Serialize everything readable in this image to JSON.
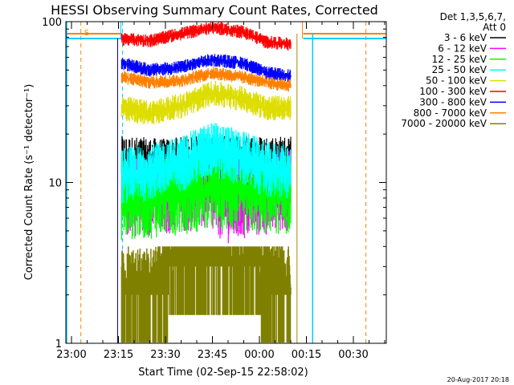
{
  "chart_data": {
    "type": "line",
    "title": "HESSI Observing Summary Count Rates, Corrected",
    "xlabel": "Start Time (02-Sep-15 22:58:02)",
    "ylabel": "Corrected Count Rate (s⁻¹ detector⁻¹)",
    "y_scale": "log",
    "ylim": [
      1,
      100
    ],
    "xlim_minutes": [
      -7,
      45
    ],
    "x_ticks": [
      {
        "label": "23:00",
        "m": 0
      },
      {
        "label": "23:15",
        "m": 15
      },
      {
        "label": "23:30",
        "m": 30
      },
      {
        "label": "23:45",
        "m": 45
      },
      {
        "label": "00:00",
        "m": 60
      },
      {
        "label": "00:15",
        "m": 75
      },
      {
        "label": "00:30",
        "m": 90
      }
    ],
    "y_ticks": [
      {
        "label": "1",
        "v": 1
      },
      {
        "label": "10",
        "v": 10
      },
      {
        "label": "100",
        "v": 100
      }
    ],
    "legend_header": [
      "Det 1,3,5,6,7,",
      "Att 0"
    ],
    "legend_position": "right",
    "footer_date": "20-Aug-2017 20:18",
    "marker_label": "S",
    "night_intervals": [
      [
        -12,
        16
      ],
      [
        74,
        999
      ]
    ],
    "saa_markers": [
      3,
      94
    ],
    "series": [
      {
        "name": "3 - 6 keV",
        "color": "#000000",
        "points": [
          [
            16,
            13
          ],
          [
            30,
            12.5
          ],
          [
            45,
            13.5
          ],
          [
            60,
            13
          ],
          [
            70,
            13
          ]
        ],
        "spread": 1.5
      },
      {
        "name": "6 - 12 keV",
        "color": "#ff00ff",
        "points": [
          [
            16,
            8.2
          ],
          [
            30,
            8.5
          ],
          [
            42,
            9
          ],
          [
            50,
            7.5
          ],
          [
            58,
            8
          ],
          [
            64,
            8.5
          ],
          [
            70,
            9
          ]
        ],
        "spread": 1.8
      },
      {
        "name": "12 - 25 keV",
        "color": "#00ff00",
        "points": [
          [
            16,
            7.8
          ],
          [
            25,
            8
          ],
          [
            35,
            8.5
          ],
          [
            45,
            9
          ],
          [
            55,
            8.5
          ],
          [
            70,
            8.5
          ]
        ],
        "spread": 1.8
      },
      {
        "name": "25 - 50 keV",
        "color": "#00ffff",
        "points": [
          [
            16,
            11
          ],
          [
            25,
            11.5
          ],
          [
            35,
            13
          ],
          [
            45,
            16
          ],
          [
            55,
            14
          ],
          [
            62,
            12
          ],
          [
            70,
            11.5
          ]
        ],
        "spread": 1.5
      },
      {
        "name": "50 - 100 keV",
        "color": "#dddd00",
        "points": [
          [
            16,
            29
          ],
          [
            25,
            27
          ],
          [
            35,
            30
          ],
          [
            45,
            36
          ],
          [
            55,
            33
          ],
          [
            62,
            29
          ],
          [
            70,
            29
          ]
        ],
        "spread": 1.2
      },
      {
        "name": "100 - 300 keV",
        "color": "#ff0000",
        "points": [
          [
            16,
            78
          ],
          [
            25,
            76
          ],
          [
            35,
            84
          ],
          [
            45,
            92
          ],
          [
            55,
            86
          ],
          [
            62,
            75
          ],
          [
            70,
            72
          ]
        ],
        "spread": 1.1
      },
      {
        "name": "300 - 800 keV",
        "color": "#0000ff",
        "points": [
          [
            16,
            55
          ],
          [
            25,
            50
          ],
          [
            35,
            52
          ],
          [
            45,
            58
          ],
          [
            55,
            55
          ],
          [
            62,
            48
          ],
          [
            70,
            46
          ]
        ],
        "spread": 1.1
      },
      {
        "name": "800 - 7000 keV",
        "color": "#ff8000",
        "points": [
          [
            16,
            45
          ],
          [
            25,
            42
          ],
          [
            35,
            43
          ],
          [
            45,
            48
          ],
          [
            55,
            45
          ],
          [
            62,
            42
          ],
          [
            70,
            40
          ]
        ],
        "spread": 1.1
      },
      {
        "name": "7000 - 20000 keV",
        "color": "#808000",
        "points": [
          [
            16,
            2
          ],
          [
            25,
            2
          ],
          [
            35,
            3
          ],
          [
            45,
            3.2
          ],
          [
            55,
            3
          ],
          [
            62,
            2.5
          ],
          [
            70,
            2
          ]
        ],
        "spread": 1.5
      }
    ]
  }
}
